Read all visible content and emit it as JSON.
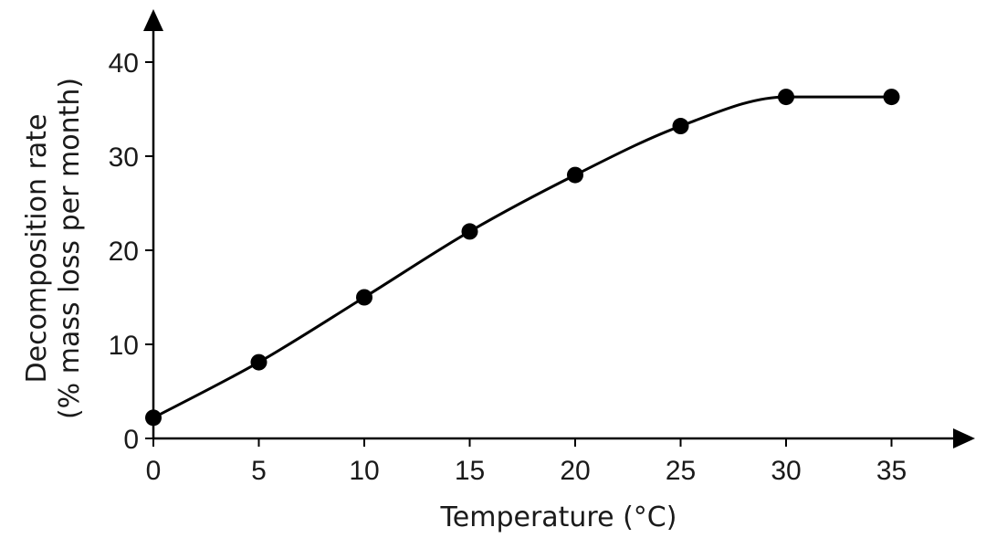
{
  "chart_data": {
    "type": "line",
    "xlabel": "Temperature (°C)",
    "ylabel_line1": "Decomposition rate",
    "ylabel_line2": "(% mass loss per month)",
    "x": [
      0,
      5,
      10,
      15,
      20,
      25,
      30,
      35
    ],
    "y": [
      2.2,
      8.1,
      15.0,
      22.0,
      28.0,
      33.2,
      36.3,
      36.3
    ],
    "xticks": [
      0,
      5,
      10,
      15,
      20,
      25,
      30,
      35
    ],
    "yticks": [
      0,
      10,
      20,
      30,
      40
    ],
    "xlim": [
      0,
      38
    ],
    "ylim": [
      0,
      45
    ],
    "grid": false,
    "markers": "filled-circle",
    "line_color": "#000000"
  }
}
